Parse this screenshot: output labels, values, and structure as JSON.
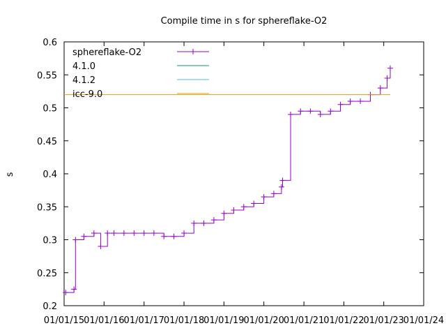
{
  "chart_data": {
    "type": "line",
    "title": "Compile time in s for sphereflake-O2",
    "xlabel": "",
    "ylabel": "s",
    "ylim": [
      0.2,
      0.6
    ],
    "yticks": [
      "0.2",
      "0.25",
      "0.3",
      "0.35",
      "0.4",
      "0.45",
      "0.5",
      "0.55",
      "0.6"
    ],
    "xlim": [
      "2015-01-01",
      "2024-01-01"
    ],
    "xticks": [
      "01/01/15",
      "01/01/16",
      "01/01/17",
      "01/01/18",
      "01/01/19",
      "01/01/20",
      "01/01/21",
      "01/01/22",
      "01/01/23",
      "01/01/24"
    ],
    "grid": false,
    "legend_position": "top-left",
    "series": [
      {
        "name": "sphereflake-O2",
        "color": "#9400d3",
        "marker": "plus",
        "x": [
          "2015-01-15",
          "2015-04-01",
          "2015-04-15",
          "2015-07-01",
          "2015-10-01",
          "2015-12-01",
          "2016-02-01",
          "2016-04-01",
          "2016-07-01",
          "2016-10-01",
          "2017-01-01",
          "2017-04-01",
          "2017-07-01",
          "2017-10-01",
          "2018-01-01",
          "2018-04-01",
          "2018-07-01",
          "2018-10-01",
          "2019-01-01",
          "2019-04-01",
          "2019-07-01",
          "2019-10-01",
          "2020-01-01",
          "2020-04-01",
          "2020-06-10",
          "2020-06-20",
          "2020-09-01",
          "2020-12-01",
          "2021-03-01",
          "2021-06-01",
          "2021-09-01",
          "2021-12-01",
          "2022-03-01",
          "2022-06-01",
          "2022-09-01",
          "2022-12-01",
          "2023-02-01",
          "2023-03-01"
        ],
        "y": [
          0.22,
          0.225,
          0.3,
          0.305,
          0.31,
          0.29,
          0.31,
          0.31,
          0.31,
          0.31,
          0.31,
          0.31,
          0.305,
          0.305,
          0.31,
          0.325,
          0.325,
          0.33,
          0.34,
          0.345,
          0.35,
          0.355,
          0.365,
          0.37,
          0.38,
          0.39,
          0.49,
          0.495,
          0.495,
          0.49,
          0.495,
          0.505,
          0.51,
          0.51,
          0.52,
          0.53,
          0.545,
          0.56
        ]
      },
      {
        "name": "4.1.0",
        "color": "#009e73",
        "marker": "none",
        "x": [],
        "y": []
      },
      {
        "name": "4.1.2",
        "color": "#56b4e9",
        "marker": "none",
        "x": [],
        "y": []
      },
      {
        "name": "icc-9.0",
        "color": "#e69f00",
        "marker": "none",
        "x": [
          "2015-01-01",
          "2023-03-01"
        ],
        "y": [
          0.52,
          0.52
        ]
      }
    ]
  }
}
